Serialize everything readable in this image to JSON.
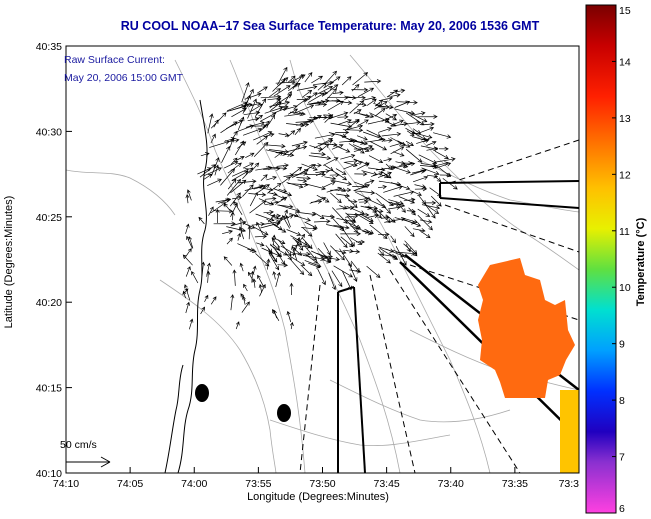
{
  "chart_data": {
    "type": "heatmap",
    "title": "RU COOL  NOAA–17  Sea Surface Temperature:  May 20, 2006 1536 GMT",
    "xlabel": "Longitude (Degrees:Minutes)",
    "ylabel": "Latitude (Degrees:Minutes)",
    "colorbar_label": "Temperature (°C)",
    "overlay_label_1": "Raw Surface Current:",
    "overlay_label_2": "May 20, 2006 15:00 GMT",
    "scale_label": "50 cm/s",
    "x_ticks": [
      "74:10",
      "74:05",
      "74:00",
      "73:55",
      "73:50",
      "73:45",
      "73:40",
      "73:35",
      "73:3"
    ],
    "y_ticks": [
      "40:35",
      "40:30",
      "40:25",
      "40:20",
      "40:15",
      "40:10"
    ],
    "colorbar_ticks": [
      "15",
      "14",
      "13",
      "12",
      "11",
      "10",
      "9",
      "8",
      "7",
      "6"
    ],
    "xlim": [
      "74:10",
      "73:30"
    ],
    "ylim": [
      "40:10",
      "40:35"
    ],
    "clim": [
      6,
      15
    ],
    "sst_patch_temperature": 12.5,
    "colors": {
      "title": "#0000a0",
      "label": "#000000",
      "overlay_text": "#1a1aa0",
      "sst_patch": "#ff6a10",
      "sst_strip": "#ffc400"
    }
  }
}
